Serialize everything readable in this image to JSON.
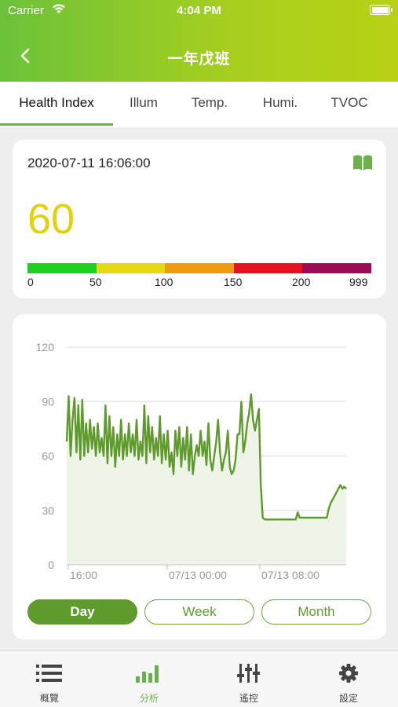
{
  "status_bar": {
    "carrier": "Carrier",
    "time": "4:04 PM"
  },
  "nav": {
    "title": "一年戊班",
    "back_icon": "chevron-left-icon"
  },
  "tabs": [
    {
      "label": "Health Index",
      "active": true
    },
    {
      "label": "Illum",
      "active": false
    },
    {
      "label": "Temp.",
      "active": false
    },
    {
      "label": "Humi.",
      "active": false
    },
    {
      "label": "TVOC",
      "active": false
    }
  ],
  "health_card": {
    "timestamp": "2020-07-11 16:06:00",
    "value": "60",
    "value_color": "#e2d20a",
    "info_icon": "book-icon",
    "scale": {
      "labels": [
        "0",
        "50",
        "100",
        "150",
        "200",
        "999"
      ],
      "colors": [
        "#1fd11f",
        "#e8d811",
        "#f09a0c",
        "#e8101e",
        "#9c0c56"
      ]
    }
  },
  "chart_data": {
    "type": "area",
    "ylim": [
      0,
      120
    ],
    "yticks": [
      "120",
      "90",
      "60",
      "30",
      "0"
    ],
    "xtick_labels": [
      "16:00",
      "07/13 00:00",
      "07/13 08:00"
    ],
    "line_color": "#5e9a2c",
    "fill_color": "#eef5e8",
    "grid": true,
    "series": [
      {
        "values": [
          68,
          93,
          60,
          80,
          92,
          62,
          88,
          58,
          91,
          60,
          78,
          62,
          80,
          64,
          76,
          60,
          78,
          62,
          70,
          60,
          88,
          56,
          82,
          60,
          76,
          54,
          72,
          60,
          80,
          58,
          72,
          60,
          78,
          62,
          72,
          60,
          80,
          58,
          68,
          60,
          88,
          56,
          82,
          62,
          76,
          58,
          70,
          60,
          82,
          56,
          72,
          58,
          74,
          54,
          62,
          50,
          74,
          60,
          76,
          54,
          70,
          58,
          76,
          52,
          72,
          50,
          60,
          66,
          60,
          74,
          60,
          68,
          55,
          78,
          58,
          52,
          60,
          68,
          80,
          62,
          52,
          58,
          62,
          74,
          54,
          50,
          52,
          58,
          72,
          72,
          90,
          62,
          68,
          78,
          84,
          94,
          80,
          74,
          80,
          86,
          44,
          26,
          25,
          25,
          25,
          25,
          25,
          25,
          25,
          25,
          25,
          25,
          25,
          25,
          25,
          25,
          25,
          25,
          25,
          29,
          26,
          26,
          26,
          26,
          26,
          26,
          26,
          26,
          26,
          26,
          26,
          26,
          26,
          26,
          26,
          31,
          34,
          36,
          38,
          40,
          42,
          44,
          42,
          43,
          42
        ]
      }
    ]
  },
  "range_buttons": [
    {
      "label": "Day",
      "active": true
    },
    {
      "label": "Week",
      "active": false
    },
    {
      "label": "Month",
      "active": false
    }
  ],
  "tabbar": [
    {
      "label": "概覽",
      "icon": "list-icon",
      "active": false
    },
    {
      "label": "分析",
      "icon": "bar-chart-icon",
      "active": true
    },
    {
      "label": "遙控",
      "icon": "sliders-icon",
      "active": false
    },
    {
      "label": "設定",
      "icon": "gear-icon",
      "active": false
    }
  ]
}
